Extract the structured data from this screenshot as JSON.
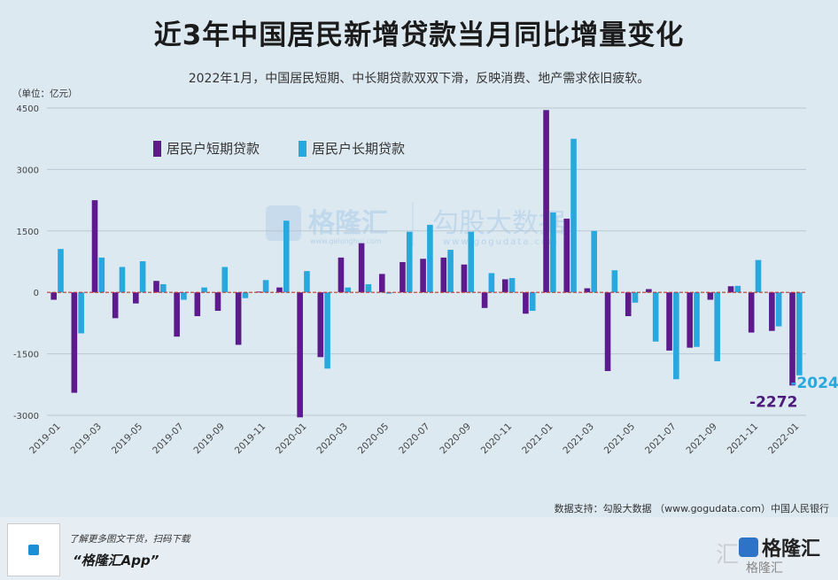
{
  "title": "近3年中国居民新增贷款当月同比增量变化",
  "subtitle": "2022年1月，中国居民短期、中长期贷款双双下滑，反映消费、地产需求依旧疲软。",
  "unit_label": "（单位：亿元）",
  "source": "数据支持：勾股大数据 （www.gogudata.com）中国人民银行",
  "footer": {
    "promo": "了解更多图文干货，扫码下载",
    "app_name": "“格隆汇App”",
    "brand_name": "格隆汇",
    "brand_sub": "格隆汇",
    "watermark_char": "汇"
  },
  "watermarks": {
    "left_main": "格隆汇",
    "left_sub": "www.gelonghui.com",
    "right_main": "勾股大数据",
    "right_sub": "www.gogudata.com"
  },
  "colors": {
    "short_term": "#5c1a8c",
    "long_term": "#29a8de",
    "zero_line": "#c0392b",
    "grid": "#b9c8d3",
    "callout_short": "#4b1a7a",
    "callout_long": "#29a8de"
  },
  "chart_data": {
    "type": "bar",
    "ylim": [
      -3000,
      4500
    ],
    "yticks": [
      -3000,
      -1500,
      0,
      1500,
      3000,
      4500
    ],
    "grid": true,
    "legend_position": "top-left",
    "categories": [
      "2019-01",
      "2019-02",
      "2019-03",
      "2019-04",
      "2019-05",
      "2019-06",
      "2019-07",
      "2019-08",
      "2019-09",
      "2019-10",
      "2019-11",
      "2019-12",
      "2020-01",
      "2020-02",
      "2020-03",
      "2020-04",
      "2020-05",
      "2020-06",
      "2020-07",
      "2020-08",
      "2020-09",
      "2020-10",
      "2020-11",
      "2020-12",
      "2021-01",
      "2021-02",
      "2021-03",
      "2021-04",
      "2021-05",
      "2021-06",
      "2021-07",
      "2021-08",
      "2021-09",
      "2021-10",
      "2021-11",
      "2021-12",
      "2022-01"
    ],
    "xtick_labels": [
      "2019-01",
      "2019-03",
      "2019-05",
      "2019-07",
      "2019-09",
      "2019-11",
      "2020-01",
      "2020-03",
      "2020-05",
      "2020-07",
      "2020-09",
      "2020-11",
      "2021-01",
      "2021-03",
      "2021-05",
      "2021-07",
      "2021-09",
      "2021-11",
      "2022-01"
    ],
    "series": [
      {
        "name": "居民户短期贷款",
        "values": [
          -180,
          -2450,
          2250,
          -630,
          -270,
          280,
          -1080,
          -580,
          -450,
          -1280,
          20,
          120,
          -3050,
          -1580,
          850,
          1200,
          450,
          740,
          820,
          850,
          680,
          -380,
          320,
          -520,
          4450,
          1800,
          100,
          -1920,
          -580,
          80,
          -1420,
          -1350,
          -180,
          150,
          -980,
          -940,
          -2272
        ]
      },
      {
        "name": "居民户长期贷款",
        "values": [
          1060,
          -1000,
          850,
          620,
          760,
          200,
          -180,
          120,
          620,
          -140,
          300,
          1750,
          520,
          -1860,
          120,
          200,
          -30,
          1480,
          1650,
          1040,
          1480,
          470,
          350,
          -450,
          1950,
          3750,
          1500,
          540,
          -250,
          -1200,
          -2120,
          -1330,
          -1680,
          160,
          790,
          -830,
          -2024
        ]
      }
    ],
    "annotations": [
      {
        "text": "-2024",
        "series": "居民户长期贷款",
        "category": "2022-01"
      },
      {
        "text": "-2272",
        "series": "居民户短期贷款",
        "category": "2022-01"
      }
    ]
  }
}
